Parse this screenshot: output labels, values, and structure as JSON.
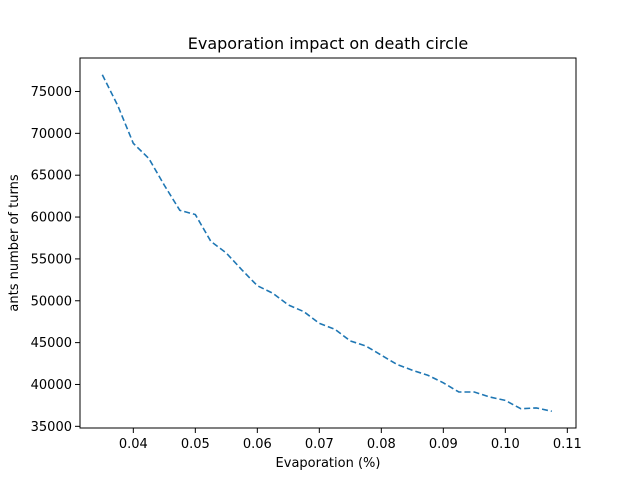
{
  "chart_data": {
    "type": "line",
    "title": "Evaporation impact on death circle",
    "xlabel": "Evaporation (%)",
    "ylabel": "ants number of turns",
    "xlim": [
      0.0314,
      0.1114
    ],
    "ylim": [
      34800,
      79000
    ],
    "x_ticks": [
      0.04,
      0.05,
      0.06,
      0.07,
      0.08,
      0.09,
      0.1,
      0.11
    ],
    "x_tick_labels": [
      "0.04",
      "0.05",
      "0.06",
      "0.07",
      "0.08",
      "0.09",
      "0.10",
      "0.11"
    ],
    "y_ticks": [
      35000,
      40000,
      45000,
      50000,
      55000,
      60000,
      65000,
      70000,
      75000
    ],
    "y_tick_labels": [
      "35000",
      "40000",
      "45000",
      "50000",
      "55000",
      "60000",
      "65000",
      "70000",
      "75000"
    ],
    "grid": false,
    "series": [
      {
        "color": "#1f77b4",
        "line_style": "dashed",
        "x": [
          0.035,
          0.0375,
          0.04,
          0.0425,
          0.045,
          0.0475,
          0.05,
          0.0525,
          0.055,
          0.0575,
          0.06,
          0.0625,
          0.065,
          0.0675,
          0.07,
          0.0725,
          0.075,
          0.0775,
          0.08,
          0.0825,
          0.085,
          0.0875,
          0.09,
          0.0925,
          0.095,
          0.0975,
          0.1,
          0.1025,
          0.105,
          0.1075
        ],
        "values": [
          77000,
          73300,
          68800,
          67000,
          63800,
          60800,
          60300,
          57100,
          55700,
          53700,
          51800,
          50900,
          49500,
          48700,
          47300,
          46600,
          45200,
          44600,
          43500,
          42400,
          41700,
          41100,
          40200,
          39100,
          39100,
          38500,
          38100,
          37100,
          37200,
          36800
        ]
      }
    ]
  }
}
